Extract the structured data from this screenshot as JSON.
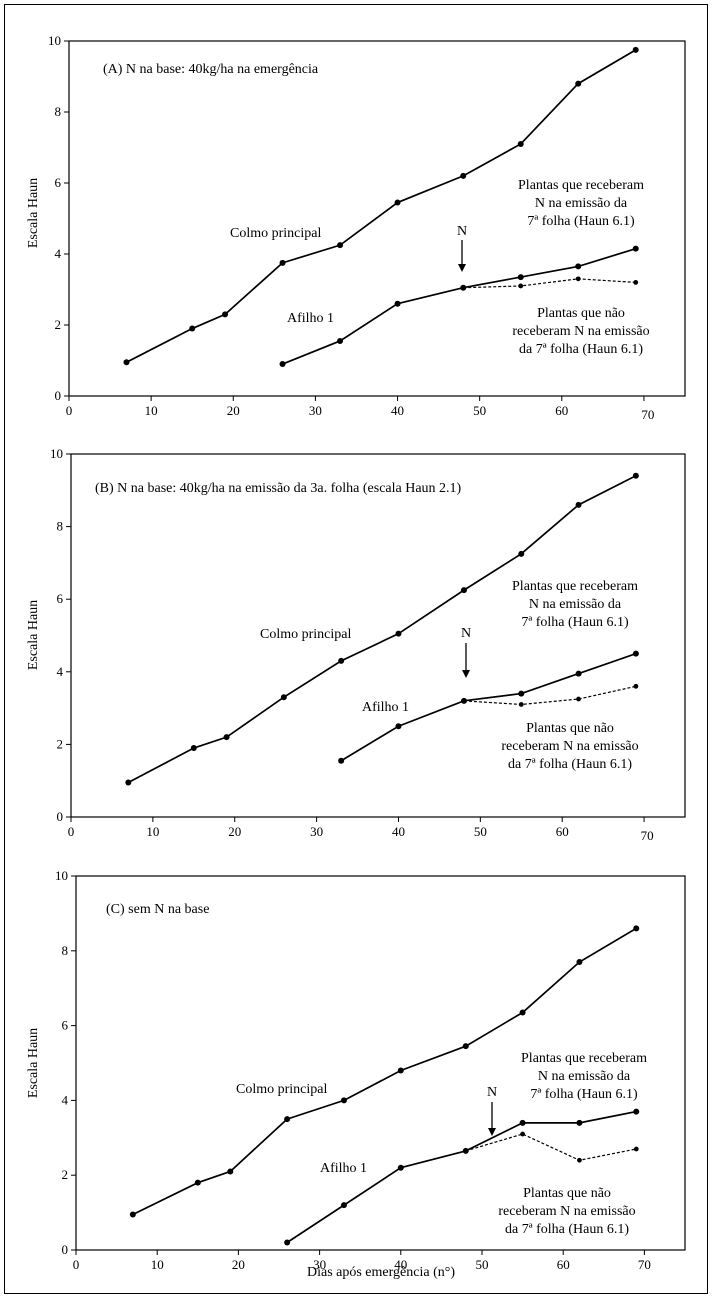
{
  "xlabel": "Dias após emergência (n°)",
  "chart_data": [
    {
      "type": "line",
      "title": "(A) N na base: 40kg/ha na emergência",
      "xlabel": "",
      "ylabel": "Escala Haun",
      "xlim": [
        0,
        75
      ],
      "ylim": [
        0,
        10
      ],
      "xticks": [
        0,
        10,
        20,
        30,
        40,
        50,
        60,
        70
      ],
      "yticks": [
        0,
        2,
        4,
        6,
        8,
        10
      ],
      "series": [
        {
          "name": "Colmo principal",
          "style": "solid",
          "x": [
            7,
            15,
            19,
            26,
            33,
            40,
            48,
            55,
            62,
            69
          ],
          "y": [
            0.95,
            1.9,
            2.3,
            3.75,
            4.25,
            5.45,
            6.2,
            7.1,
            8.8,
            9.75
          ]
        },
        {
          "name": "Afilho 1",
          "style": "solid",
          "x": [
            26,
            33,
            40,
            48,
            55,
            62,
            69
          ],
          "y": [
            0.9,
            1.55,
            2.6,
            3.05,
            3.35,
            3.65,
            4.15
          ]
        },
        {
          "name": "",
          "style": "dotted",
          "x": [
            48,
            55,
            62,
            69
          ],
          "y": [
            3.05,
            3.1,
            3.3,
            3.2
          ]
        }
      ],
      "annotations": {
        "main_label": "Colmo principal",
        "tiller_label": "Afilho 1",
        "n_marker": "N",
        "received": [
          "Plantas que receberam",
          "N na emissão da",
          "7ª folha (Haun 6.1)"
        ],
        "not_received": [
          "Plantas que não",
          "receberam N na emissão",
          "da 7ª folha (Haun 6.1)"
        ]
      }
    },
    {
      "type": "line",
      "title": "(B) N na base: 40kg/ha na emissão da 3a. folha (escala Haun 2.1)",
      "xlabel": "",
      "ylabel": "Escala Haun",
      "xlim": [
        0,
        75
      ],
      "ylim": [
        0,
        10
      ],
      "xticks": [
        0,
        10,
        20,
        30,
        40,
        50,
        60,
        70
      ],
      "yticks": [
        0,
        2,
        4,
        6,
        8,
        10
      ],
      "series": [
        {
          "name": "Colmo principal",
          "style": "solid",
          "x": [
            7,
            15,
            19,
            26,
            33,
            40,
            48,
            55,
            62,
            69
          ],
          "y": [
            0.95,
            1.9,
            2.2,
            3.3,
            4.3,
            5.05,
            6.25,
            7.25,
            8.6,
            9.4
          ]
        },
        {
          "name": "Afilho 1",
          "style": "solid",
          "x": [
            33,
            40,
            48,
            55,
            62,
            69
          ],
          "y": [
            1.55,
            2.5,
            3.2,
            3.4,
            3.95,
            4.5
          ]
        },
        {
          "name": "",
          "style": "dotted",
          "x": [
            48,
            55,
            62,
            69
          ],
          "y": [
            3.2,
            3.1,
            3.25,
            3.6
          ]
        }
      ],
      "annotations": {
        "main_label": "Colmo principal",
        "tiller_label": "Afilho 1",
        "n_marker": "N",
        "received": [
          "Plantas que receberam",
          "N na emissão  da",
          "7ª folha (Haun 6.1)"
        ],
        "not_received": [
          "Plantas que não",
          "receberam N na emissão",
          "da 7ª folha (Haun 6.1)"
        ]
      }
    },
    {
      "type": "line",
      "title": "(C) sem N na base",
      "xlabel": "Dias após emergência (n°)",
      "ylabel": "Escala Haun",
      "xlim": [
        0,
        75
      ],
      "ylim": [
        0,
        10
      ],
      "xticks": [
        0,
        10,
        20,
        30,
        40,
        50,
        60,
        70
      ],
      "yticks": [
        0,
        2,
        4,
        6,
        8,
        10
      ],
      "series": [
        {
          "name": "Colmo principal",
          "style": "solid",
          "x": [
            7,
            15,
            19,
            26,
            33,
            40,
            48,
            55,
            62,
            69
          ],
          "y": [
            0.95,
            1.8,
            2.1,
            3.5,
            4.0,
            4.8,
            5.45,
            6.35,
            7.7,
            8.6
          ]
        },
        {
          "name": "Afilho 1",
          "style": "solid",
          "x": [
            26,
            33,
            40,
            48,
            55,
            62,
            69
          ],
          "y": [
            0.2,
            1.2,
            2.2,
            2.65,
            3.4,
            3.4,
            3.7
          ]
        },
        {
          "name": "",
          "style": "dotted",
          "x": [
            48,
            55,
            62,
            69
          ],
          "y": [
            2.65,
            3.1,
            2.4,
            2.7
          ]
        }
      ],
      "annotations": {
        "main_label": "Colmo principal",
        "tiller_label": "Afilho 1",
        "n_marker": "N",
        "received": [
          "Plantas que receberam",
          "N na emissão da",
          "7ª folha (Haun 6.1)"
        ],
        "not_received": [
          "Plantas que não",
          "receberam N na emissão",
          "da 7ª folha (Haun 6.1)"
        ]
      }
    }
  ]
}
